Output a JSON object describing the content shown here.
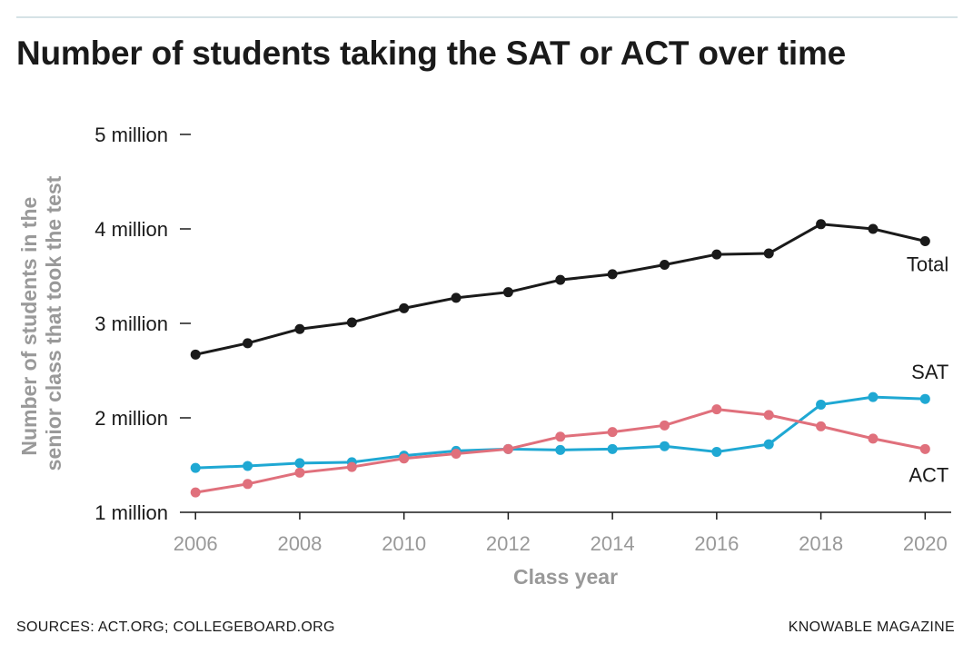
{
  "title": "Number of students taking the SAT or ACT over time",
  "footer": {
    "sources": "SOURCES: ACT.ORG; COLLEGEBOARD.ORG",
    "credit": "KNOWABLE MAGAZINE"
  },
  "chart_data": {
    "type": "line",
    "xlabel": "Class year",
    "ylabel_lines": [
      "Number of students in the",
      "senior class that took the test"
    ],
    "x": [
      2006,
      2007,
      2008,
      2009,
      2010,
      2011,
      2012,
      2013,
      2014,
      2015,
      2016,
      2017,
      2018,
      2019,
      2020
    ],
    "x_ticks": [
      "2006",
      "2008",
      "2010",
      "2012",
      "2014",
      "2016",
      "2018",
      "2020"
    ],
    "y_ticks": [
      {
        "value": 1,
        "label": "1 million"
      },
      {
        "value": 2,
        "label": "2 million"
      },
      {
        "value": 3,
        "label": "3 million"
      },
      {
        "value": 4,
        "label": "4 million"
      },
      {
        "value": 5,
        "label": "5 million"
      }
    ],
    "ylim": [
      1,
      5
    ],
    "xlim": [
      2005.7,
      2020.5
    ],
    "grid": false,
    "series": [
      {
        "name": "Total",
        "color": "#1a1a1a",
        "values": [
          2.67,
          2.79,
          2.94,
          3.01,
          3.16,
          3.27,
          3.33,
          3.46,
          3.52,
          3.62,
          3.73,
          3.74,
          4.05,
          4.0,
          3.87
        ]
      },
      {
        "name": "SAT",
        "color": "#1fa8d3",
        "values": [
          1.47,
          1.49,
          1.52,
          1.53,
          1.6,
          1.65,
          1.67,
          1.66,
          1.67,
          1.7,
          1.64,
          1.72,
          2.14,
          2.22,
          2.2
        ]
      },
      {
        "name": "ACT",
        "color": "#e0707c",
        "values": [
          1.21,
          1.3,
          1.42,
          1.48,
          1.57,
          1.62,
          1.67,
          1.8,
          1.85,
          1.92,
          2.09,
          2.03,
          1.91,
          1.78,
          1.67
        ]
      }
    ]
  }
}
